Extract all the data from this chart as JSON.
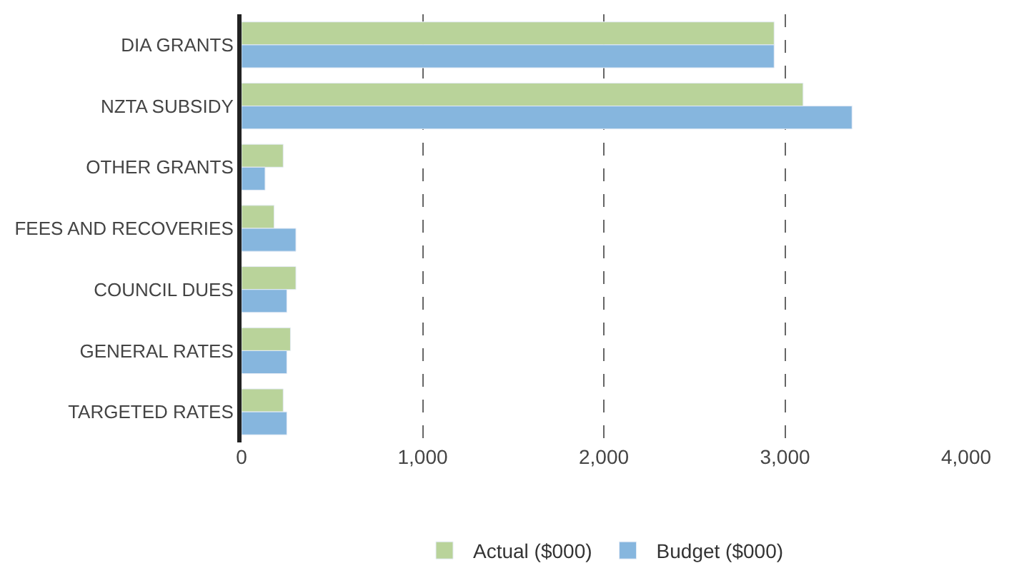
{
  "chart_data": {
    "type": "bar",
    "orientation": "horizontal",
    "categories": [
      "DIA GRANTS",
      "NZTA SUBSIDY",
      "OTHER GRANTS",
      "FEES AND RECOVERIES",
      "COUNCIL DUES",
      "GENERAL RATES",
      "TARGETED RATES"
    ],
    "series": [
      {
        "name": "Actual ($000)",
        "color": "#b9d39a",
        "values": [
          2940,
          3100,
          230,
          180,
          300,
          270,
          230
        ]
      },
      {
        "name": "Budget ($000)",
        "color": "#86b6de",
        "values": [
          2940,
          3370,
          130,
          300,
          250,
          250,
          250
        ]
      }
    ],
    "xlim": [
      0,
      4000
    ],
    "xticks": [
      {
        "value": 0,
        "label": "0"
      },
      {
        "value": 1000,
        "label": "1,000"
      },
      {
        "value": 2000,
        "label": "2,000"
      },
      {
        "value": 3000,
        "label": "3,000"
      },
      {
        "value": 4000,
        "label": "4,000"
      }
    ],
    "grid": "x",
    "legend": "bottom"
  }
}
